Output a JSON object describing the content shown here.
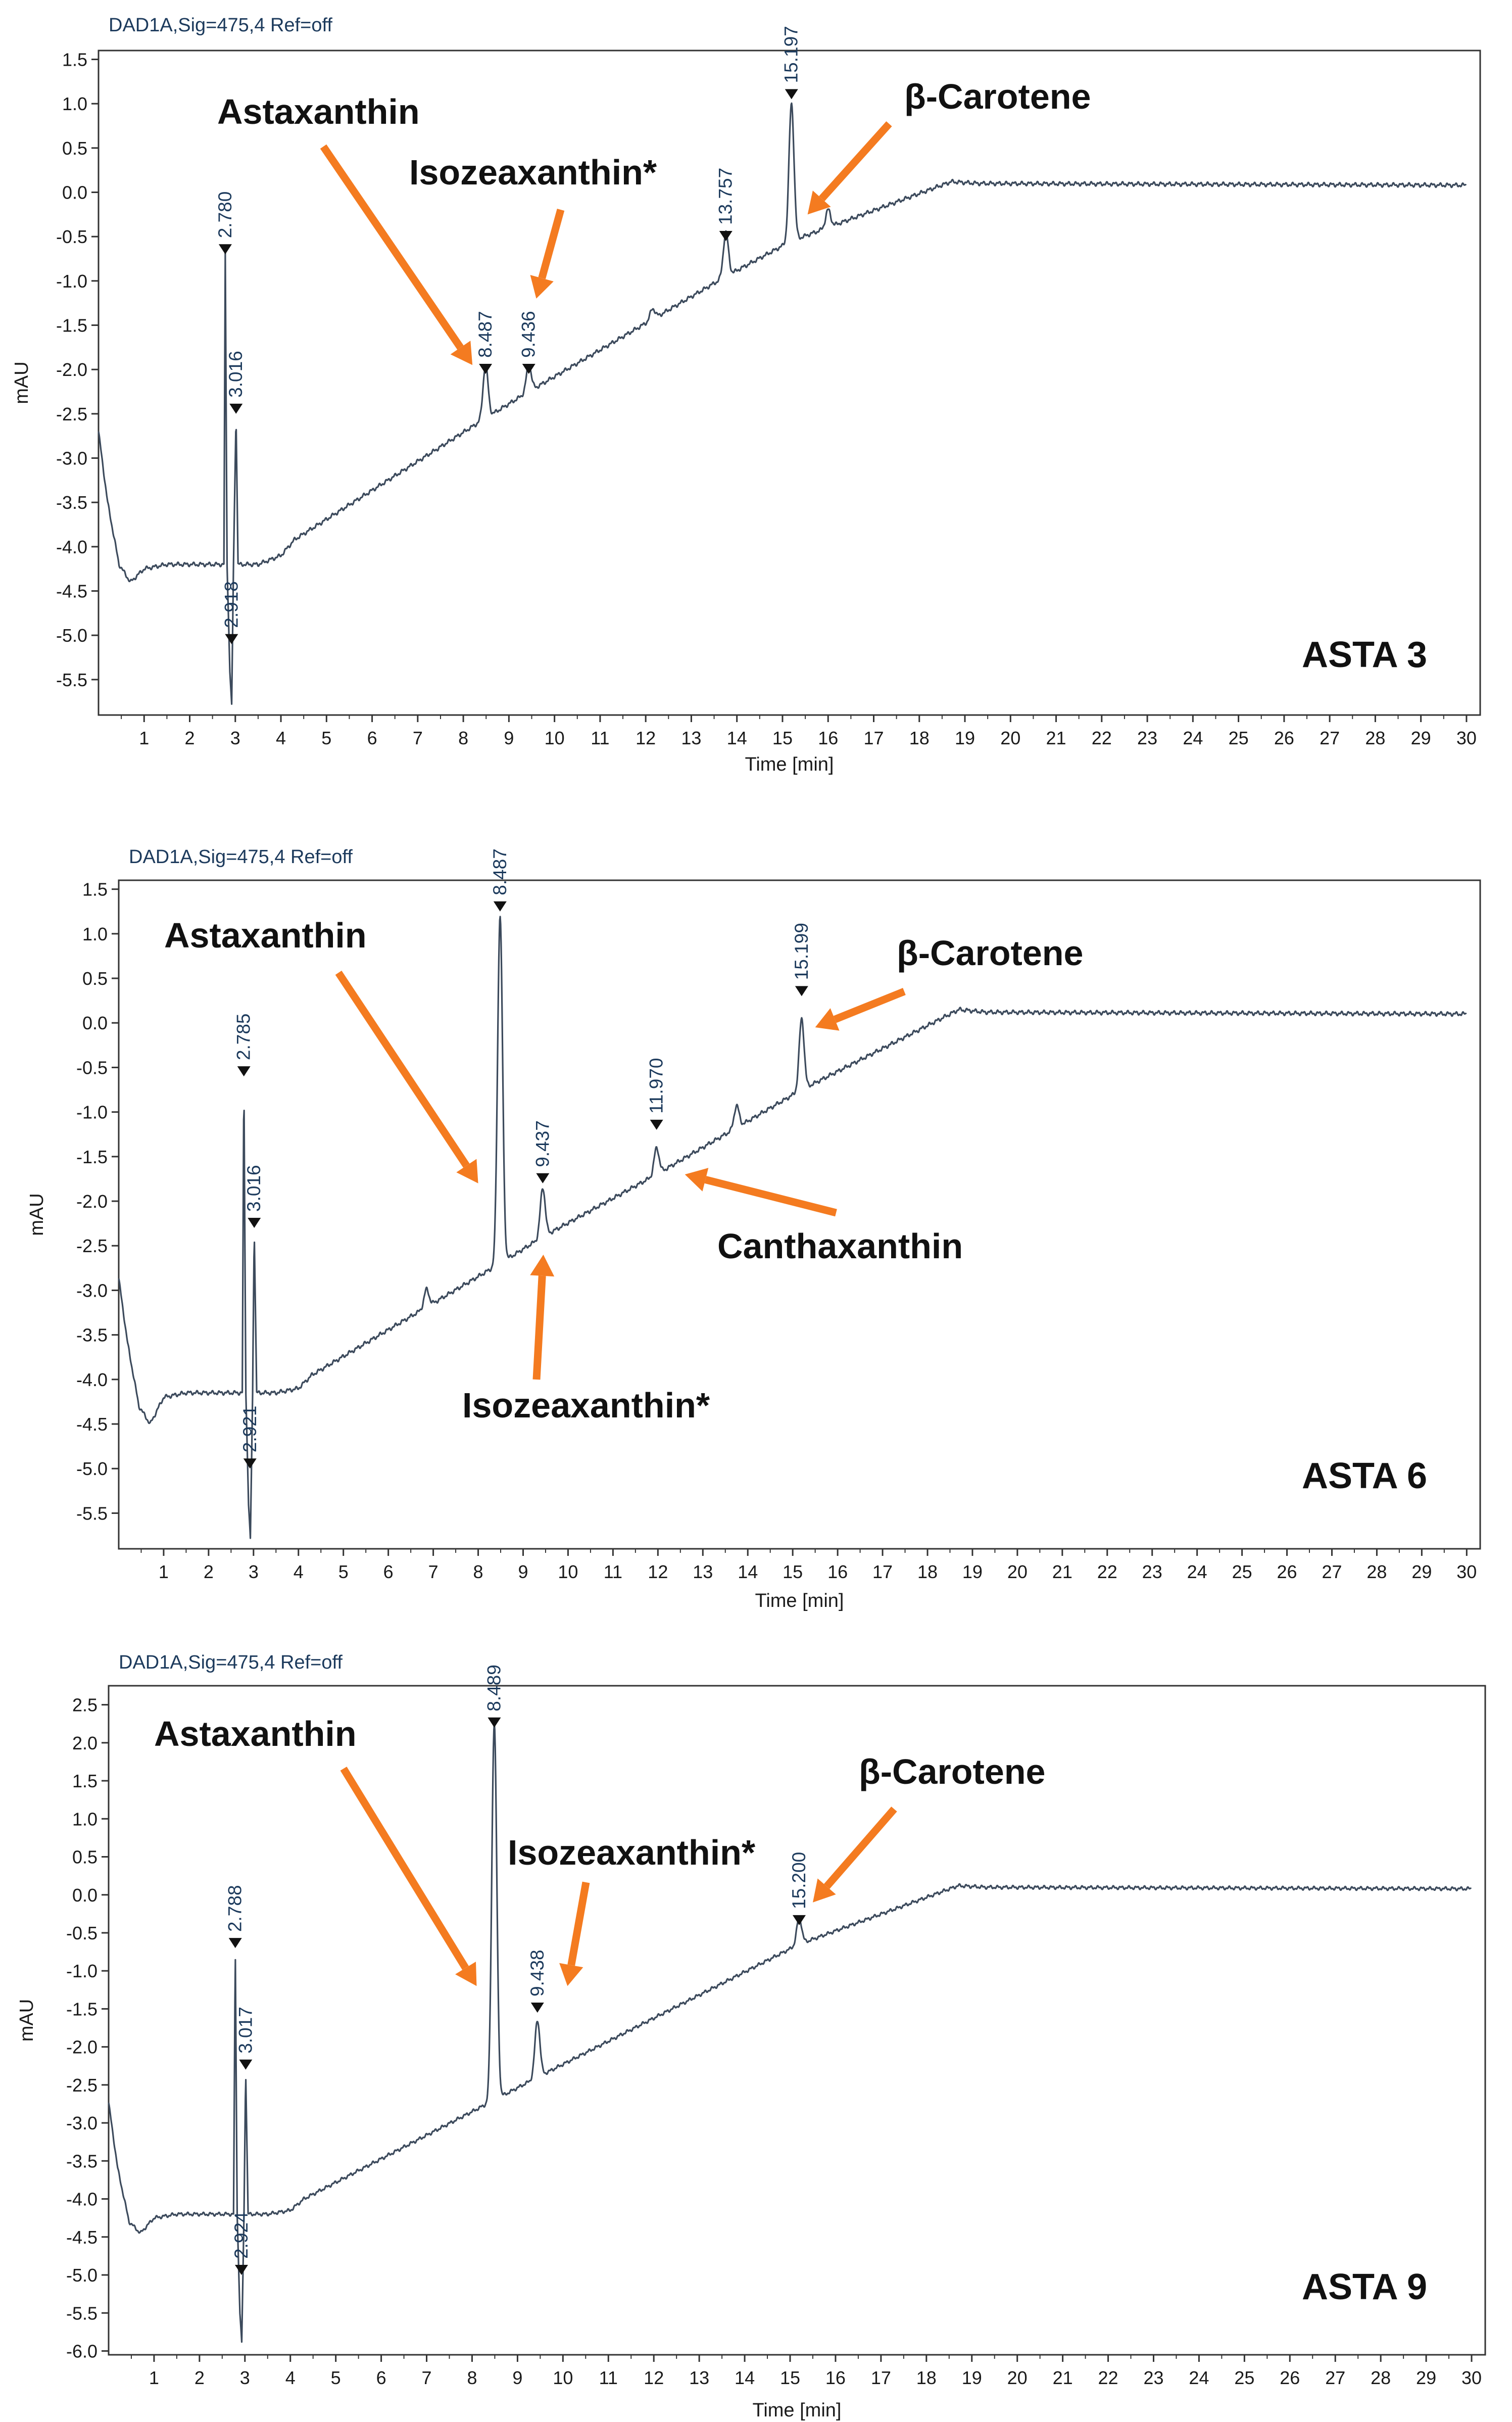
{
  "chart_data": [
    {
      "type": "line",
      "id": "asta3",
      "header": "DAD1A,Sig=475,4  Ref=off",
      "panel_label": "ASTA 3",
      "xlabel": "Time [min]",
      "ylabel": "mAU",
      "xlim": [
        0,
        30.3
      ],
      "ylim": [
        -5.9,
        1.6
      ],
      "x_ticks": [
        "1",
        "2",
        "3",
        "4",
        "5",
        "6",
        "7",
        "8",
        "9",
        "10",
        "11",
        "12",
        "13",
        "14",
        "15",
        "16",
        "17",
        "18",
        "19",
        "20",
        "21",
        "22",
        "23",
        "24",
        "25",
        "26",
        "27",
        "28",
        "29",
        "30"
      ],
      "y_ticks": [
        "1.5",
        "1.0",
        "0.5",
        "0.0",
        "-0.5",
        "-1.0",
        "-1.5",
        "-2.0",
        "-2.5",
        "-3.0",
        "-3.5",
        "-4.0",
        "-4.5",
        "-5.0",
        "-5.5"
      ],
      "baseline": [
        [
          -0.1,
          -2.3
        ],
        [
          0.2,
          -3.5
        ],
        [
          0.45,
          -4.2
        ],
        [
          0.7,
          -4.4
        ],
        [
          1.0,
          -4.25
        ],
        [
          1.5,
          -4.2
        ],
        [
          2.0,
          -4.2
        ],
        [
          2.6,
          -4.2
        ],
        [
          2.75,
          -4.2
        ],
        [
          2.78,
          -0.7
        ],
        [
          2.82,
          -4.2
        ],
        [
          2.88,
          -5.4
        ],
        [
          2.92,
          -5.8
        ],
        [
          2.96,
          -4.2
        ],
        [
          3.016,
          -2.5
        ],
        [
          3.06,
          -4.2
        ],
        [
          3.5,
          -4.2
        ],
        [
          4.0,
          -4.1
        ],
        [
          4.3,
          -3.92
        ],
        [
          8.487,
          -2.55
        ],
        [
          9.436,
          -2.25
        ],
        [
          13.757,
          -0.95
        ],
        [
          15.197,
          -0.55
        ],
        [
          18.7,
          0.12
        ],
        [
          19.3,
          0.1
        ],
        [
          30.0,
          0.08
        ]
      ],
      "peaks": [
        {
          "time": 2.78,
          "label": "2.780",
          "height": 3.5,
          "marker_value": -0.7
        },
        {
          "time": 3.016,
          "label": "3.016",
          "height": 1.7,
          "marker_value": -2.5
        },
        {
          "time": 2.918,
          "label": "2.918",
          "height": -1.2,
          "marker_value": -5.1
        },
        {
          "time": 8.487,
          "label": "8.487",
          "height": 0.6,
          "marker_value": -2.05
        },
        {
          "time": 9.436,
          "label": "9.436",
          "height": 0.3,
          "marker_value": -2.05
        },
        {
          "time": 13.757,
          "label": "13.757",
          "height": 0.5,
          "marker_value": -0.55
        },
        {
          "time": 15.197,
          "label": "15.197",
          "height": 1.55,
          "marker_value": 1.05
        },
        {
          "time": 12.15,
          "label": "",
          "height": 0.12,
          "marker_value": null
        },
        {
          "time": 16.0,
          "label": "",
          "height": 0.2,
          "marker_value": null
        }
      ],
      "annotations": [
        {
          "text": "Astaxanthin",
          "target_time": 8.2,
          "target_value": -1.95
        },
        {
          "text": "Isozeaxanthin*",
          "target_time": 9.6,
          "target_value": -1.2
        },
        {
          "text": "β-Carotene",
          "target_time": 15.55,
          "target_value": -0.25
        }
      ]
    },
    {
      "type": "line",
      "id": "asta6",
      "header": "DAD1A,Sig=475,4  Ref=off",
      "panel_label": "ASTA 6",
      "xlabel": "Time [min]",
      "ylabel": "mAU",
      "xlim": [
        0,
        30.3
      ],
      "ylim": [
        -5.9,
        1.6
      ],
      "x_ticks": [
        "1",
        "2",
        "3",
        "4",
        "5",
        "6",
        "7",
        "8",
        "9",
        "10",
        "11",
        "12",
        "13",
        "14",
        "15",
        "16",
        "17",
        "18",
        "19",
        "20",
        "21",
        "22",
        "23",
        "24",
        "25",
        "26",
        "27",
        "28",
        "29",
        "30"
      ],
      "y_ticks": [
        "1.5",
        "1.0",
        "0.5",
        "0.0",
        "-0.5",
        "-1.0",
        "-1.5",
        "-2.0",
        "-2.5",
        "-3.0",
        "-3.5",
        "-4.0",
        "-4.5",
        "-5.0",
        "-5.5"
      ],
      "baseline": [
        [
          -0.1,
          -2.5
        ],
        [
          0.2,
          -3.6
        ],
        [
          0.45,
          -4.3
        ],
        [
          0.7,
          -4.5
        ],
        [
          1.0,
          -4.2
        ],
        [
          1.5,
          -4.15
        ],
        [
          2.0,
          -4.15
        ],
        [
          2.7,
          -4.15
        ],
        [
          2.75,
          -4.15
        ],
        [
          2.785,
          -0.6
        ],
        [
          2.83,
          -4.15
        ],
        [
          2.89,
          -5.4
        ],
        [
          2.93,
          -5.8
        ],
        [
          2.98,
          -4.15
        ],
        [
          3.016,
          -2.3
        ],
        [
          3.07,
          -4.15
        ],
        [
          3.5,
          -4.15
        ],
        [
          4.0,
          -4.1
        ],
        [
          4.3,
          -3.95
        ],
        [
          8.487,
          -2.7
        ],
        [
          9.437,
          -2.4
        ],
        [
          11.97,
          -1.7
        ],
        [
          15.199,
          -0.75
        ],
        [
          18.7,
          0.15
        ],
        [
          19.3,
          0.12
        ],
        [
          30.0,
          0.1
        ]
      ],
      "peaks": [
        {
          "time": 2.785,
          "label": "2.785",
          "height": 3.5,
          "marker_value": -0.6
        },
        {
          "time": 3.016,
          "label": "3.016",
          "height": 1.8,
          "marker_value": -2.3
        },
        {
          "time": 2.921,
          "label": "2.921",
          "height": -1.2,
          "marker_value": -5.0
        },
        {
          "time": 8.487,
          "label": "8.487",
          "height": 3.9,
          "marker_value": 1.25
        },
        {
          "time": 9.437,
          "label": "9.437",
          "height": 0.55,
          "marker_value": -1.8
        },
        {
          "time": 11.97,
          "label": "11.970",
          "height": 0.3,
          "marker_value": -1.2
        },
        {
          "time": 15.199,
          "label": "15.199",
          "height": 0.8,
          "marker_value": 0.3
        },
        {
          "time": 6.85,
          "label": "",
          "height": 0.2,
          "marker_value": null
        },
        {
          "time": 13.75,
          "label": "",
          "height": 0.25,
          "marker_value": null
        }
      ],
      "annotations": [
        {
          "text": "Astaxanthin",
          "target_time": 8.0,
          "target_value": -1.8
        },
        {
          "text": "Isozeaxanthin*",
          "target_time": 9.45,
          "target_value": -2.6
        },
        {
          "text": "Canthaxanthin",
          "target_time": 12.6,
          "target_value": -1.7
        },
        {
          "text": "β-Carotene",
          "target_time": 15.5,
          "target_value": -0.05
        }
      ]
    },
    {
      "type": "line",
      "id": "asta9",
      "header": "DAD1A,Sig=475,4  Ref=off",
      "panel_label": "ASTA 9",
      "xlabel": "Time [min]",
      "ylabel": "mAU",
      "xlim": [
        0,
        30.3
      ],
      "ylim": [
        -6.05,
        2.75
      ],
      "x_ticks": [
        "1",
        "2",
        "3",
        "4",
        "5",
        "6",
        "7",
        "8",
        "9",
        "10",
        "11",
        "12",
        "13",
        "14",
        "15",
        "16",
        "17",
        "18",
        "19",
        "20",
        "21",
        "22",
        "23",
        "24",
        "25",
        "26",
        "27",
        "28",
        "29",
        "30"
      ],
      "y_ticks": [
        "2.5",
        "2.0",
        "1.5",
        "1.0",
        "0.5",
        "0.0",
        "-0.5",
        "-1.0",
        "-1.5",
        "-2.0",
        "-2.5",
        "-3.0",
        "-3.5",
        "-4.0",
        "-4.5",
        "-5.0",
        "-5.5",
        "-6.0"
      ],
      "baseline": [
        [
          -0.1,
          -2.3
        ],
        [
          0.2,
          -3.6
        ],
        [
          0.45,
          -4.3
        ],
        [
          0.7,
          -4.45
        ],
        [
          1.0,
          -4.25
        ],
        [
          1.5,
          -4.2
        ],
        [
          2.0,
          -4.2
        ],
        [
          2.75,
          -4.2
        ],
        [
          2.788,
          -0.7
        ],
        [
          2.83,
          -4.2
        ],
        [
          2.89,
          -5.5
        ],
        [
          2.93,
          -5.9
        ],
        [
          2.98,
          -4.2
        ],
        [
          3.017,
          -2.3
        ],
        [
          3.07,
          -4.2
        ],
        [
          3.5,
          -4.2
        ],
        [
          4.0,
          -4.15
        ],
        [
          4.3,
          -4.0
        ],
        [
          8.489,
          -2.7
        ],
        [
          9.438,
          -2.4
        ],
        [
          15.2,
          -0.65
        ],
        [
          18.7,
          0.12
        ],
        [
          19.3,
          0.1
        ],
        [
          30.0,
          0.08
        ]
      ],
      "peaks": [
        {
          "time": 2.788,
          "label": "2.788",
          "height": 3.5,
          "marker_value": -0.7
        },
        {
          "time": 3.017,
          "label": "3.017",
          "height": 1.9,
          "marker_value": -2.3
        },
        {
          "time": 2.924,
          "label": "2.924",
          "height": -1.3,
          "marker_value": -5.0
        },
        {
          "time": 8.489,
          "label": "8.489",
          "height": 4.95,
          "marker_value": 2.2
        },
        {
          "time": 9.438,
          "label": "9.438",
          "height": 0.75,
          "marker_value": -1.55
        },
        {
          "time": 15.2,
          "label": "15.200",
          "height": 0.35,
          "marker_value": -0.4
        }
      ],
      "annotations": [
        {
          "text": "Astaxanthin",
          "target_time": 8.1,
          "target_value": -1.2
        },
        {
          "text": "Isozeaxanthin*",
          "target_time": 10.1,
          "target_value": -1.2
        },
        {
          "text": "β-Carotene",
          "target_time": 15.5,
          "target_value": -0.1
        }
      ]
    }
  ]
}
